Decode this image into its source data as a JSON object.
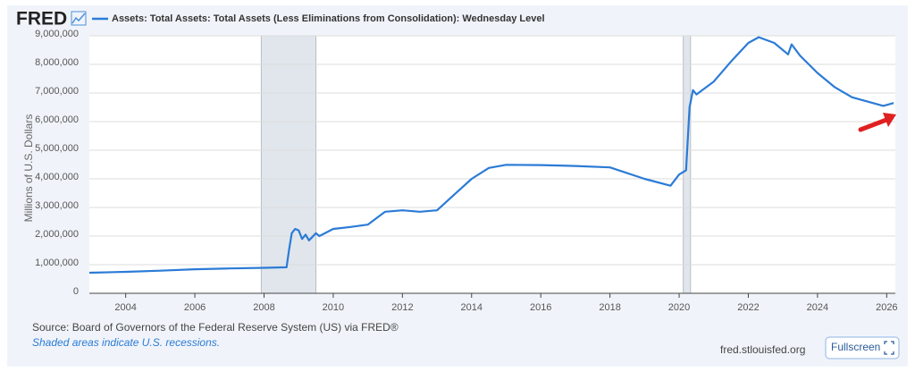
{
  "logo": "FRED",
  "source": "Source: Board of Governors of the Federal Reserve System (US) via FRED®",
  "note": "Shaded areas indicate U.S. recessions.",
  "site": "fred.stlouisfed.org",
  "button": "Fullscreen",
  "chart_data": {
    "type": "line",
    "ylabel": "Millions of U.S. Dollars",
    "x": [
      2002.95,
      2004,
      2005,
      2006,
      2007,
      2008,
      2008.65,
      2008.72,
      2008.8,
      2008.9,
      2009.0,
      2009.1,
      2009.2,
      2009.3,
      2009.5,
      2009.6,
      2010,
      2010.5,
      2011,
      2011.5,
      2012,
      2012.5,
      2013,
      2013.5,
      2014,
      2014.5,
      2015,
      2016,
      2017,
      2018,
      2019,
      2019.75,
      2020.0,
      2020.2,
      2020.3,
      2020.4,
      2020.5,
      2021,
      2021.5,
      2022,
      2022.3,
      2022.75,
      2023.15,
      2023.25,
      2023.5,
      2024,
      2024.5,
      2025,
      2025.6,
      2025.9,
      2026.2
    ],
    "series": [
      {
        "name": "Assets: Total Assets: Total Assets (Less Eliminations from Consolidation): Wednesday Level",
        "color": "#2b7bd6",
        "values": [
          720000,
          750000,
          790000,
          840000,
          870000,
          890000,
          910000,
          1500000,
          2100000,
          2250000,
          2200000,
          1900000,
          2050000,
          1850000,
          2100000,
          2000000,
          2250000,
          2320000,
          2400000,
          2850000,
          2900000,
          2850000,
          2900000,
          3450000,
          4000000,
          4380000,
          4490000,
          4480000,
          4450000,
          4400000,
          4000000,
          3760000,
          4150000,
          4300000,
          6500000,
          7100000,
          6950000,
          7400000,
          8100000,
          8750000,
          8950000,
          8750000,
          8350000,
          8700000,
          8300000,
          7700000,
          7200000,
          6850000,
          6650000,
          6550000,
          6650000
        ]
      }
    ],
    "recessions": [
      [
        2007.92,
        2009.5
      ],
      [
        2020.12,
        2020.33
      ]
    ],
    "xlim": [
      2002.95,
      2026.25
    ],
    "xticks": [
      2004,
      2006,
      2008,
      2010,
      2012,
      2014,
      2016,
      2018,
      2020,
      2022,
      2024,
      2026
    ],
    "ylim": [
      0,
      9000000
    ],
    "yticks": [
      0,
      {
        "value": 1000000,
        "label": "1,000,000"
      },
      {
        "value": 2000000,
        "label": "2,000,000"
      },
      {
        "value": 3000000,
        "label": "3,000,000"
      },
      {
        "value": 4000000,
        "label": "4,000,000"
      },
      {
        "value": 5000000,
        "label": "5,000,000"
      },
      {
        "value": 6000000,
        "label": "6,000,000"
      },
      {
        "value": 7000000,
        "label": "7,000,000"
      },
      {
        "value": 8000000,
        "label": "8,000,000"
      },
      {
        "value": {
          "value": 9000000,
          "label": "9,000,000"
        },
        "label": "9,000,000"
      }
    ],
    "grid": true
  }
}
